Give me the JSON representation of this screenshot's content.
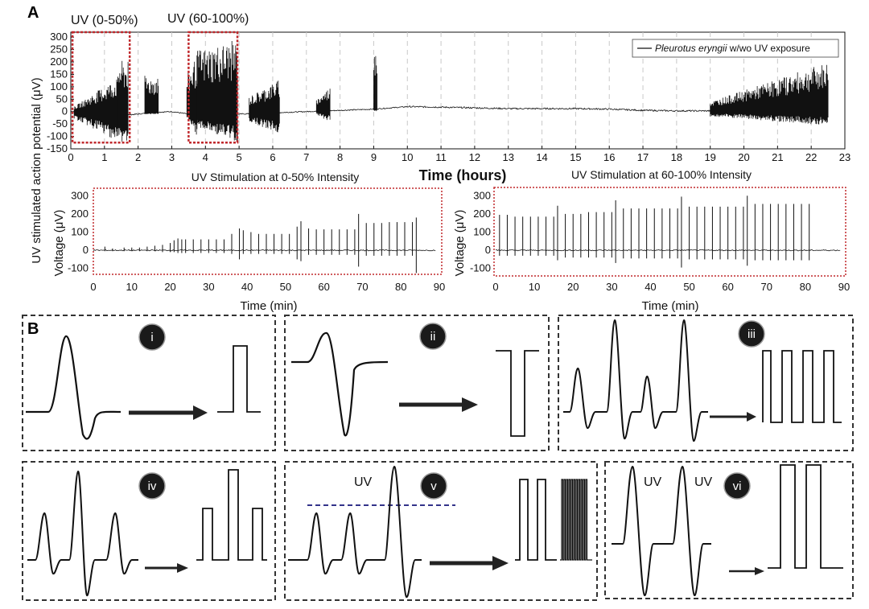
{
  "figure": {
    "panel_a_label": "A",
    "panel_b_label": "B"
  },
  "colors": {
    "trace": "#111111",
    "highlight_box": "#c0282c",
    "grid_dash": "#c8c8c8",
    "dashed_threshold": "#33338a",
    "badge": "#1a1a1a"
  },
  "chart_data": [
    {
      "type": "line",
      "title": "",
      "xlabel": "Time (hours)",
      "ylabel": "UV stimulated action potential (μV)",
      "xlim": [
        0,
        23
      ],
      "ylim": [
        -150,
        320
      ],
      "xticks": [
        0,
        1,
        2,
        3,
        4,
        5,
        6,
        7,
        8,
        9,
        10,
        11,
        12,
        13,
        14,
        15,
        16,
        17,
        18,
        19,
        20,
        21,
        22,
        23
      ],
      "yticks": [
        300,
        250,
        200,
        150,
        100,
        50,
        0,
        -50,
        -100,
        -150
      ],
      "grid": "vertical dashed at each hour",
      "legend": {
        "position": "top-right",
        "entry": "Pleurotus eryngii w/wo UV exposure",
        "entry_italic": "Pleurotus eryngii",
        "entry_rest": " w/wo UV exposure"
      },
      "annotations": [
        {
          "text": "UV (0-50%)",
          "x_range": [
            0.05,
            1.75
          ],
          "y_range": [
            -125,
            320
          ]
        },
        {
          "text": "UV (60-100%)",
          "x_range": [
            3.5,
            4.95
          ],
          "y_range": [
            -125,
            320
          ]
        }
      ],
      "series": [
        {
          "baseline": [
            [
              0,
              0
            ],
            [
              0.5,
              -5
            ],
            [
              1,
              -10
            ],
            [
              1.5,
              -15
            ],
            [
              2,
              -10
            ],
            [
              2.5,
              -3
            ],
            [
              3,
              0
            ],
            [
              3.5,
              -10
            ],
            [
              4,
              -15
            ],
            [
              4.5,
              -15
            ],
            [
              5,
              -10
            ],
            [
              6,
              -5
            ],
            [
              7,
              0
            ],
            [
              8,
              5
            ],
            [
              9,
              10
            ],
            [
              10,
              20
            ],
            [
              11,
              18
            ],
            [
              12,
              15
            ],
            [
              13,
              12
            ],
            [
              14,
              12
            ],
            [
              15,
              12
            ],
            [
              16,
              10
            ],
            [
              17,
              5
            ],
            [
              18,
              3
            ],
            [
              19,
              3
            ],
            [
              20,
              2
            ],
            [
              21,
              0
            ],
            [
              22,
              0
            ],
            [
              22.5,
              0
            ]
          ],
          "spike_envelope": [
            {
              "x_range": [
                0.1,
                1.4
              ],
              "max": [
                20,
                140
              ],
              "min": [
                -30,
                -120
              ]
            },
            {
              "x_range": [
                1.4,
                1.7
              ],
              "max": [
                205,
                205
              ],
              "min": [
                -125,
                -125
              ]
            },
            {
              "x_range": [
                2.2,
                2.6
              ],
              "max": [
                145,
                145
              ],
              "min": [
                -10,
                -10
              ]
            },
            {
              "x_range": [
                3.45,
                3.75
              ],
              "max": [
                150,
                230
              ],
              "min": [
                -30,
                -110
              ]
            },
            {
              "x_range": [
                3.75,
                4.95
              ],
              "max": [
                250,
                290
              ],
              "min": [
                -60,
                -125
              ]
            },
            {
              "x_range": [
                5.3,
                6.2
              ],
              "max": [
                60,
                130
              ],
              "min": [
                -40,
                -90
              ]
            },
            {
              "x_range": [
                7.3,
                7.7
              ],
              "max": [
                50,
                100
              ],
              "min": [
                -15,
                -40
              ]
            },
            {
              "x_range": [
                9.0,
                9.1
              ],
              "max": [
                305,
                305
              ],
              "min": [
                0,
                0
              ]
            },
            {
              "x_range": [
                19.0,
                22.5
              ],
              "max": [
                40,
                200
              ],
              "min": [
                -20,
                -55
              ]
            }
          ]
        }
      ]
    },
    {
      "type": "line",
      "title": "UV Stimulation at 0-50% Intensity",
      "xlabel": "Time (min)",
      "ylabel": "Voltage (μV)",
      "xlim": [
        0,
        90
      ],
      "ylim": [
        -150,
        350
      ],
      "xticks": [
        0,
        10,
        20,
        30,
        40,
        50,
        60,
        70,
        80,
        90
      ],
      "yticks": [
        300,
        200,
        100,
        0,
        -100
      ],
      "series": [
        {
          "spikes_min": [
            3,
            5,
            8,
            10,
            12,
            14,
            16,
            18,
            20,
            21,
            22,
            23,
            24,
            26,
            28,
            30,
            32,
            34,
            36,
            38,
            39,
            41,
            43,
            45,
            47,
            49,
            51,
            53,
            54,
            56,
            58,
            60,
            62,
            64,
            66,
            68,
            69,
            71,
            73,
            75,
            77,
            79,
            81,
            83,
            84
          ],
          "spikes_peak_uV": [
            20,
            10,
            15,
            15,
            15,
            20,
            25,
            30,
            40,
            55,
            65,
            60,
            60,
            60,
            60,
            60,
            60,
            60,
            90,
            120,
            110,
            100,
            90,
            90,
            90,
            90,
            90,
            130,
            160,
            120,
            115,
            115,
            115,
            115,
            115,
            115,
            200,
            150,
            150,
            150,
            155,
            155,
            155,
            155,
            180
          ],
          "spikes_trough_uV": [
            -5,
            -5,
            -5,
            -5,
            -5,
            -5,
            -5,
            -10,
            -10,
            -10,
            -15,
            -15,
            -15,
            -15,
            -15,
            -15,
            -15,
            -15,
            -20,
            -50,
            -20,
            -20,
            -20,
            -20,
            -20,
            -20,
            -20,
            -50,
            -60,
            -25,
            -25,
            -25,
            -25,
            -25,
            -25,
            -25,
            -90,
            -30,
            -30,
            -30,
            -30,
            -30,
            -30,
            -30,
            -125
          ]
        }
      ]
    },
    {
      "type": "line",
      "title": "UV Stimulation at 60-100% Intensity",
      "xlabel": "Time (min)",
      "ylabel": "Voltage (μV)",
      "xlim": [
        0,
        90
      ],
      "ylim": [
        -150,
        350
      ],
      "xticks": [
        0,
        10,
        20,
        30,
        40,
        50,
        60,
        70,
        80,
        90
      ],
      "yticks": [
        300,
        200,
        100,
        0,
        -100
      ],
      "series": [
        {
          "spikes_min": [
            1,
            3,
            5,
            7,
            9,
            11,
            13,
            15,
            16,
            18,
            20,
            22,
            24,
            26,
            28,
            30,
            31,
            33,
            35,
            37,
            39,
            41,
            43,
            45,
            47,
            48,
            50,
            52,
            54,
            56,
            58,
            60,
            62,
            64,
            65,
            67,
            69,
            71,
            73,
            75,
            77,
            79,
            81
          ],
          "spikes_peak_uV": [
            195,
            195,
            185,
            185,
            185,
            185,
            185,
            185,
            245,
            200,
            200,
            200,
            210,
            210,
            210,
            210,
            275,
            230,
            230,
            230,
            230,
            230,
            230,
            230,
            230,
            295,
            240,
            240,
            240,
            240,
            240,
            240,
            240,
            240,
            300,
            255,
            255,
            255,
            255,
            255,
            255,
            255,
            255
          ],
          "spikes_trough_uV": [
            -30,
            -30,
            -30,
            -30,
            -30,
            -30,
            -30,
            -30,
            -55,
            -40,
            -40,
            -40,
            -40,
            -40,
            -40,
            -40,
            -70,
            -45,
            -45,
            -45,
            -45,
            -45,
            -45,
            -45,
            -45,
            -95,
            -50,
            -50,
            -50,
            -50,
            -50,
            -50,
            -50,
            -50,
            -85,
            -55,
            -55,
            -55,
            -55,
            -55,
            -55,
            -55,
            -55
          ]
        }
      ]
    }
  ],
  "panel_b": {
    "boxes": [
      {
        "badge": "i"
      },
      {
        "badge": "ii"
      },
      {
        "badge": "iii"
      },
      {
        "badge": "iv"
      },
      {
        "badge": "v",
        "uv_labels": [
          "UV"
        ]
      },
      {
        "badge": "vi",
        "uv_labels": [
          "UV",
          "UV"
        ]
      }
    ]
  }
}
